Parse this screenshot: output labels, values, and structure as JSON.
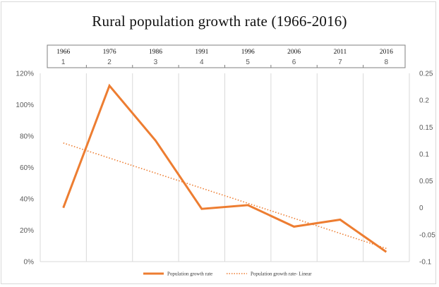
{
  "chart_data": {
    "type": "line",
    "title": "Rural population growth rate (1966-2016)",
    "categories": [
      "1",
      "2",
      "3",
      "4",
      "5",
      "6",
      "7",
      "8"
    ],
    "category_years": [
      "1966",
      "1976",
      "1986",
      "1991",
      "1996",
      "2006",
      "2011",
      "2016"
    ],
    "left_axis": {
      "ticks": [
        "0%",
        "20%",
        "40%",
        "60%",
        "80%",
        "100%",
        "120%"
      ],
      "ylim": [
        0,
        1.2
      ]
    },
    "right_axis": {
      "ticks": [
        "-0.1",
        "-0.05",
        "0",
        "0.05",
        "0.1",
        "0.15",
        "0.2",
        "0.25"
      ],
      "ylim": [
        -0.1,
        0.25
      ]
    },
    "series": [
      {
        "name": "Population growth rate",
        "axis": "right",
        "style": "solid",
        "color": "#ed7d31",
        "values": [
          0.0,
          0.227,
          0.125,
          -0.002,
          0.005,
          -0.035,
          -0.022,
          -0.082
        ]
      },
      {
        "name": "Population growth rate- Linear",
        "axis": "right",
        "style": "dotted",
        "color": "#ed7d31",
        "values": [
          0.1205,
          0.0925,
          0.0645,
          0.0365,
          0.0085,
          -0.0195,
          -0.0475,
          -0.0755
        ]
      }
    ],
    "grid": "vertical",
    "legend": "bottom"
  }
}
